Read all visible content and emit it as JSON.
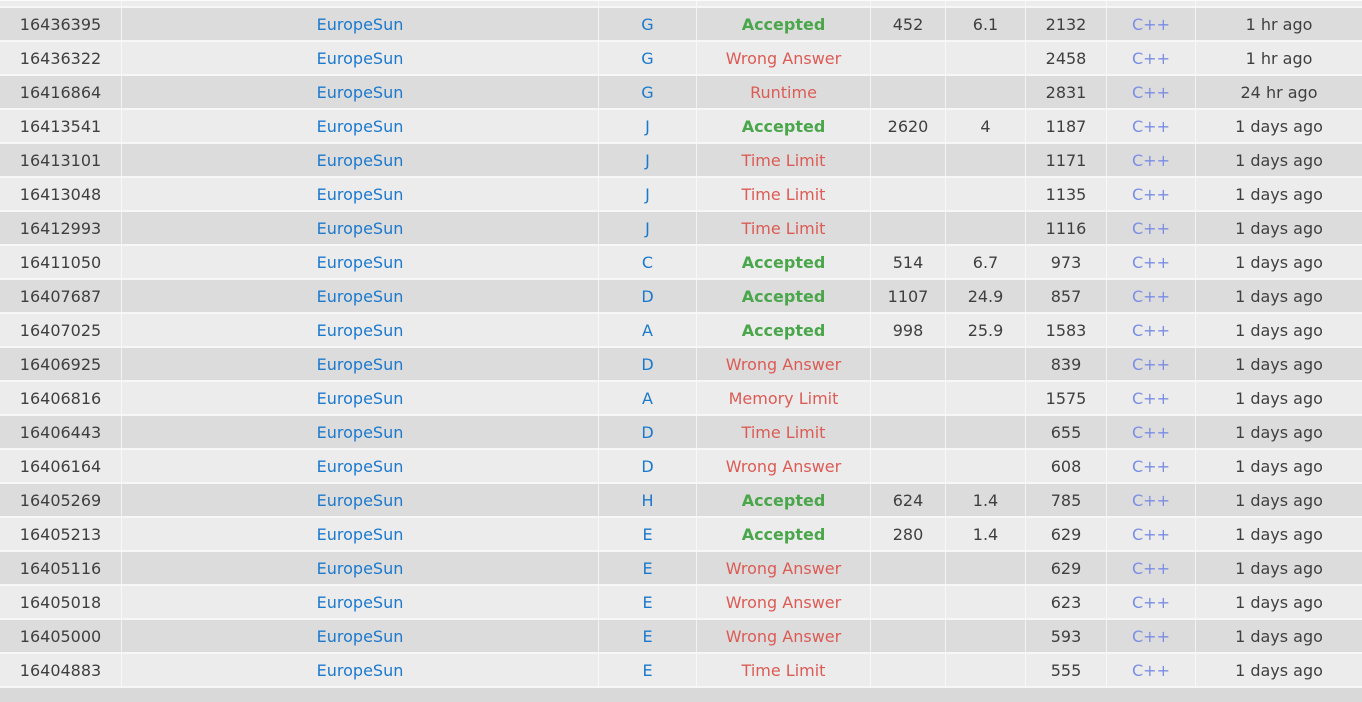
{
  "colors": {
    "page_bg": "#d9d9d9",
    "row_dark": "#dcdcdc",
    "row_light": "#ececec",
    "separator": "#f7f7f7",
    "text": "#3f3f3f",
    "link_blue": "#1b79cd",
    "lang_blue": "#7a8ee4",
    "accepted_green": "#4aa64a",
    "rejected_red": "#dc5b55"
  },
  "table": {
    "rows": [
      {
        "run_id": "16436395",
        "user": "EuropeSun",
        "problem": "G",
        "verdict": "Accepted",
        "status": "accepted",
        "time": "452",
        "memory": "6.1",
        "length": "2132",
        "language": "C++",
        "when": "1 hr ago"
      },
      {
        "run_id": "16436322",
        "user": "EuropeSun",
        "problem": "G",
        "verdict": "Wrong Answer",
        "status": "rejected",
        "time": "",
        "memory": "",
        "length": "2458",
        "language": "C++",
        "when": "1 hr ago"
      },
      {
        "run_id": "16416864",
        "user": "EuropeSun",
        "problem": "G",
        "verdict": "Runtime",
        "status": "rejected",
        "time": "",
        "memory": "",
        "length": "2831",
        "language": "C++",
        "when": "24 hr ago"
      },
      {
        "run_id": "16413541",
        "user": "EuropeSun",
        "problem": "J",
        "verdict": "Accepted",
        "status": "accepted",
        "time": "2620",
        "memory": "4",
        "length": "1187",
        "language": "C++",
        "when": "1 days ago"
      },
      {
        "run_id": "16413101",
        "user": "EuropeSun",
        "problem": "J",
        "verdict": "Time Limit",
        "status": "rejected",
        "time": "",
        "memory": "",
        "length": "1171",
        "language": "C++",
        "when": "1 days ago"
      },
      {
        "run_id": "16413048",
        "user": "EuropeSun",
        "problem": "J",
        "verdict": "Time Limit",
        "status": "rejected",
        "time": "",
        "memory": "",
        "length": "1135",
        "language": "C++",
        "when": "1 days ago"
      },
      {
        "run_id": "16412993",
        "user": "EuropeSun",
        "problem": "J",
        "verdict": "Time Limit",
        "status": "rejected",
        "time": "",
        "memory": "",
        "length": "1116",
        "language": "C++",
        "when": "1 days ago"
      },
      {
        "run_id": "16411050",
        "user": "EuropeSun",
        "problem": "C",
        "verdict": "Accepted",
        "status": "accepted",
        "time": "514",
        "memory": "6.7",
        "length": "973",
        "language": "C++",
        "when": "1 days ago"
      },
      {
        "run_id": "16407687",
        "user": "EuropeSun",
        "problem": "D",
        "verdict": "Accepted",
        "status": "accepted",
        "time": "1107",
        "memory": "24.9",
        "length": "857",
        "language": "C++",
        "when": "1 days ago"
      },
      {
        "run_id": "16407025",
        "user": "EuropeSun",
        "problem": "A",
        "verdict": "Accepted",
        "status": "accepted",
        "time": "998",
        "memory": "25.9",
        "length": "1583",
        "language": "C++",
        "when": "1 days ago"
      },
      {
        "run_id": "16406925",
        "user": "EuropeSun",
        "problem": "D",
        "verdict": "Wrong Answer",
        "status": "rejected",
        "time": "",
        "memory": "",
        "length": "839",
        "language": "C++",
        "when": "1 days ago"
      },
      {
        "run_id": "16406816",
        "user": "EuropeSun",
        "problem": "A",
        "verdict": "Memory Limit",
        "status": "rejected",
        "time": "",
        "memory": "",
        "length": "1575",
        "language": "C++",
        "when": "1 days ago"
      },
      {
        "run_id": "16406443",
        "user": "EuropeSun",
        "problem": "D",
        "verdict": "Time Limit",
        "status": "rejected",
        "time": "",
        "memory": "",
        "length": "655",
        "language": "C++",
        "when": "1 days ago"
      },
      {
        "run_id": "16406164",
        "user": "EuropeSun",
        "problem": "D",
        "verdict": "Wrong Answer",
        "status": "rejected",
        "time": "",
        "memory": "",
        "length": "608",
        "language": "C++",
        "when": "1 days ago"
      },
      {
        "run_id": "16405269",
        "user": "EuropeSun",
        "problem": "H",
        "verdict": "Accepted",
        "status": "accepted",
        "time": "624",
        "memory": "1.4",
        "length": "785",
        "language": "C++",
        "when": "1 days ago"
      },
      {
        "run_id": "16405213",
        "user": "EuropeSun",
        "problem": "E",
        "verdict": "Accepted",
        "status": "accepted",
        "time": "280",
        "memory": "1.4",
        "length": "629",
        "language": "C++",
        "when": "1 days ago"
      },
      {
        "run_id": "16405116",
        "user": "EuropeSun",
        "problem": "E",
        "verdict": "Wrong Answer",
        "status": "rejected",
        "time": "",
        "memory": "",
        "length": "629",
        "language": "C++",
        "when": "1 days ago"
      },
      {
        "run_id": "16405018",
        "user": "EuropeSun",
        "problem": "E",
        "verdict": "Wrong Answer",
        "status": "rejected",
        "time": "",
        "memory": "",
        "length": "623",
        "language": "C++",
        "when": "1 days ago"
      },
      {
        "run_id": "16405000",
        "user": "EuropeSun",
        "problem": "E",
        "verdict": "Wrong Answer",
        "status": "rejected",
        "time": "",
        "memory": "",
        "length": "593",
        "language": "C++",
        "when": "1 days ago"
      },
      {
        "run_id": "16404883",
        "user": "EuropeSun",
        "problem": "E",
        "verdict": "Time Limit",
        "status": "rejected",
        "time": "",
        "memory": "",
        "length": "555",
        "language": "C++",
        "when": "1 days ago"
      }
    ]
  }
}
